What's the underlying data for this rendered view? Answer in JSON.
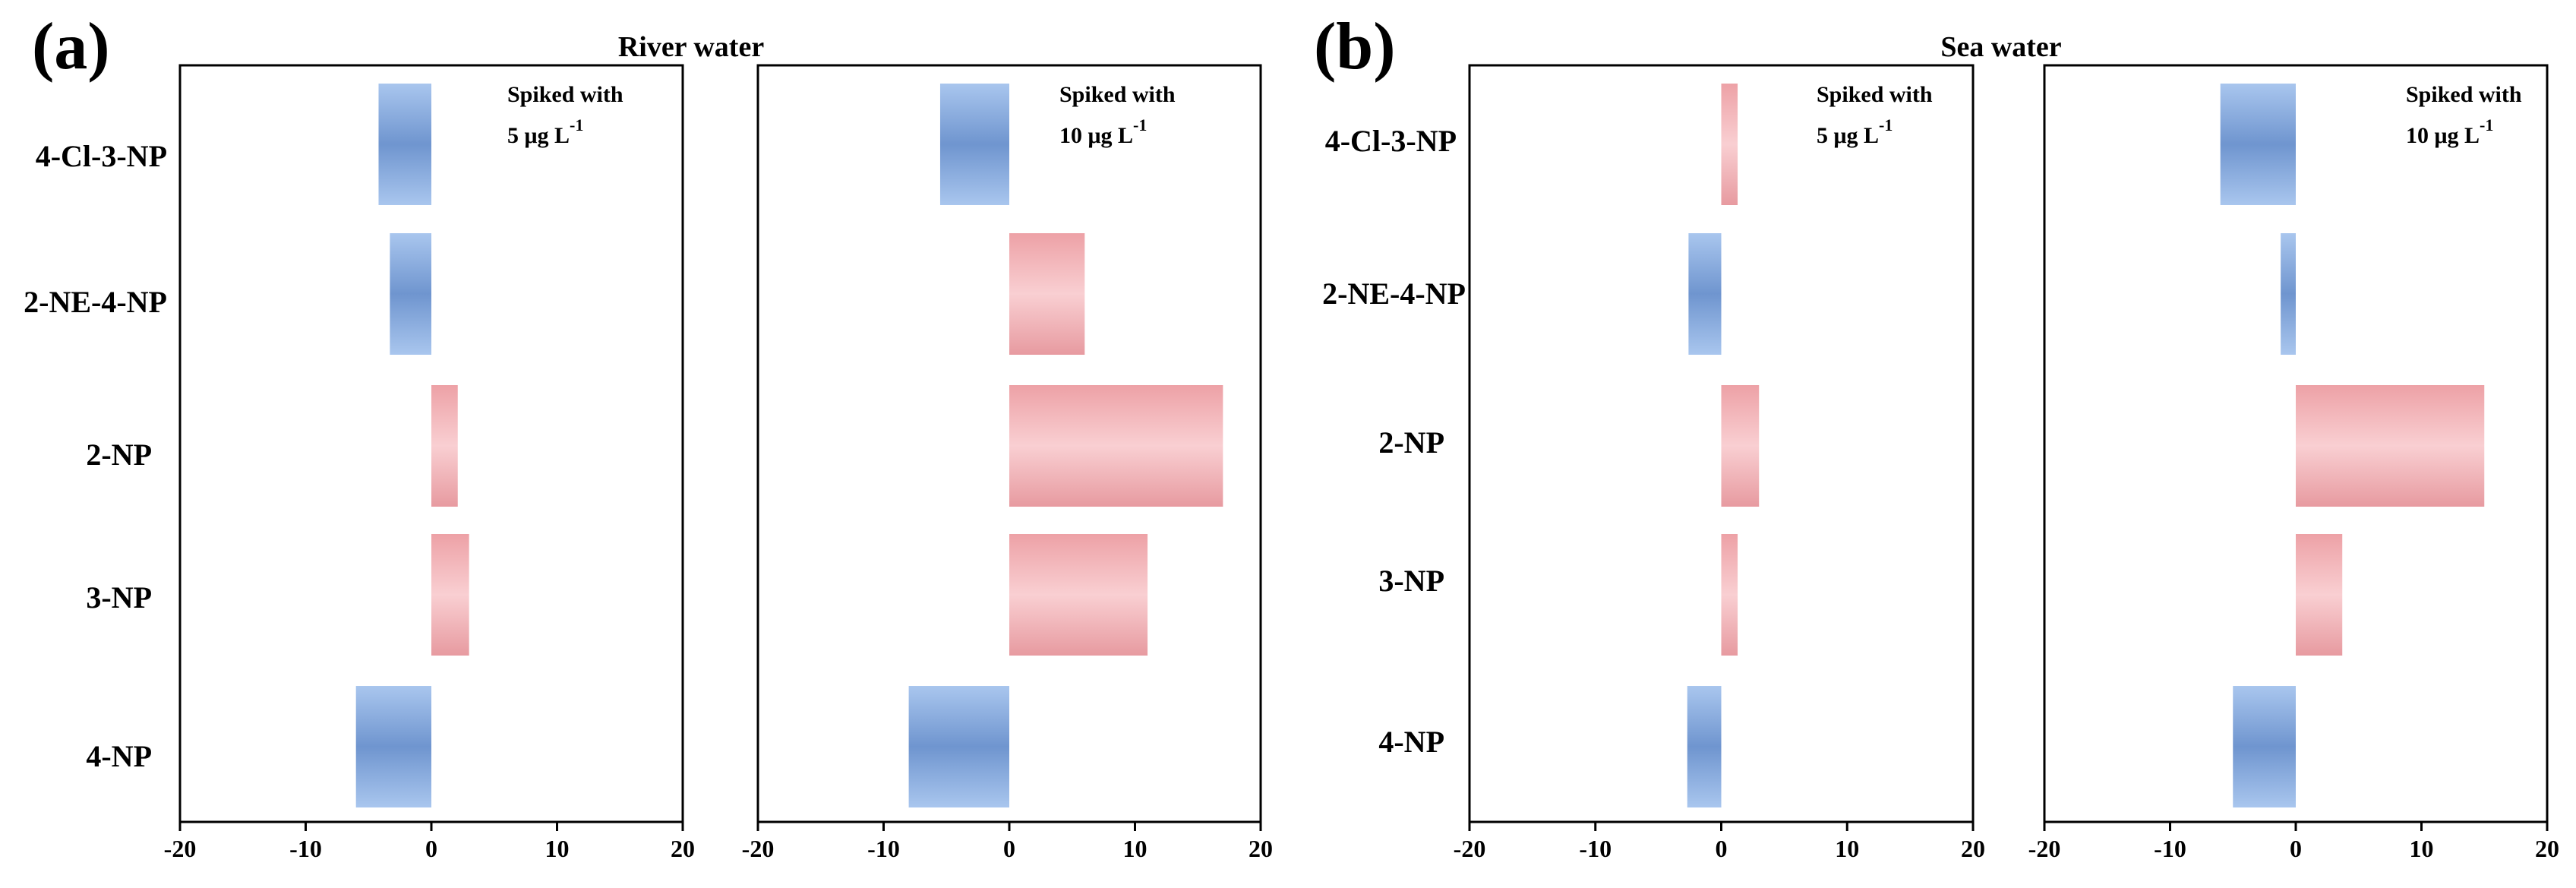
{
  "chart_data": {
    "type": "bar",
    "orientation": "horizontal",
    "categories": [
      "4-Cl-3-NP",
      "2-NE-4-NP",
      "2-NP",
      "3-NP",
      "4-NP"
    ],
    "xlim": [
      -20,
      20
    ],
    "xticks": [
      -20,
      -10,
      0,
      10,
      20
    ],
    "colors": {
      "negative": "#7ea7de",
      "positive": "#f0a8ad"
    },
    "groups": [
      {
        "panel_label": "(a)",
        "title": "River water",
        "charts": [
          {
            "annotation": "Spiked with",
            "annotation_unit": "5 μg L",
            "annotation_exp": "-1",
            "values": [
              -4.2,
              -3.3,
              2.1,
              3.0,
              -6.0
            ]
          },
          {
            "annotation": "Spiked with",
            "annotation_unit": "10 μg L",
            "annotation_exp": "-1",
            "values": [
              -5.5,
              6.0,
              17.0,
              11.0,
              -8.0
            ]
          }
        ]
      },
      {
        "panel_label": "(b)",
        "title": "Sea water",
        "charts": [
          {
            "annotation": "Spiked with",
            "annotation_unit": "5 μg L",
            "annotation_exp": "-1",
            "values": [
              1.3,
              -2.6,
              3.0,
              1.3,
              -2.7
            ]
          },
          {
            "annotation": "Spiked with",
            "annotation_unit": "10 μg L",
            "annotation_exp": "-1",
            "values": [
              -6.0,
              -1.2,
              15.0,
              3.7,
              -5.0
            ]
          }
        ]
      }
    ]
  }
}
